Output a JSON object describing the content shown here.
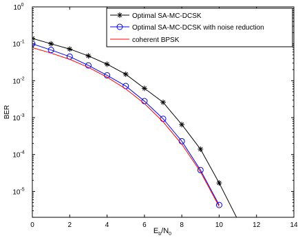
{
  "chart_data": {
    "type": "line",
    "xlabel_main": "E",
    "xlabel_sub1": "b",
    "xlabel_mid": "/N",
    "xlabel_sub2": "0",
    "ylabel": "BER",
    "xlim": [
      0,
      14
    ],
    "ylim_log10": [
      -5.7,
      0
    ],
    "y_scale": "log",
    "grid": false,
    "legend_position": "top-right",
    "x_ticks": [
      "0",
      "2",
      "4",
      "6",
      "8",
      "10",
      "12",
      "14"
    ],
    "y_ticks": [
      {
        "exp": 0,
        "mant": "10",
        "pow": "0"
      },
      {
        "exp": -1,
        "mant": "10",
        "pow": "-1"
      },
      {
        "exp": -2,
        "mant": "10",
        "pow": "-2"
      },
      {
        "exp": -3,
        "mant": "10",
        "pow": "-3"
      },
      {
        "exp": -4,
        "mant": "10",
        "pow": "-4"
      },
      {
        "exp": -5,
        "mant": "10",
        "pow": "-5"
      }
    ],
    "series": [
      {
        "name": "Optimal SA-MC-DCSK",
        "color": "#000000",
        "marker": "star",
        "x": [
          0,
          1,
          2,
          3,
          4,
          5,
          6,
          7,
          8,
          9,
          10,
          11
        ],
        "y": [
          0.14,
          0.1,
          0.072,
          0.047,
          0.028,
          0.015,
          0.0062,
          0.0026,
          0.00065,
          0.00014,
          1.7e-05,
          1.7e-06
        ]
      },
      {
        "name": "Optimal SA-MC-DCSK with noise reduction",
        "color": "#0000ff",
        "marker": "circle",
        "x": [
          0,
          1,
          2,
          3,
          4,
          5,
          6,
          7,
          8,
          9,
          10
        ],
        "y": [
          0.1,
          0.068,
          0.045,
          0.026,
          0.014,
          0.0072,
          0.0028,
          0.00093,
          0.00023,
          3.8e-05,
          4.3e-06
        ]
      },
      {
        "name": "coherent BPSK",
        "color": "#ff0000",
        "marker": "none",
        "x": [
          0,
          1,
          2,
          3,
          4,
          5,
          6,
          7,
          8,
          9,
          10
        ],
        "y": [
          0.079,
          0.056,
          0.038,
          0.023,
          0.0125,
          0.006,
          0.0024,
          0.00077,
          0.00019,
          3.4e-05,
          3.9e-06
        ]
      }
    ]
  }
}
